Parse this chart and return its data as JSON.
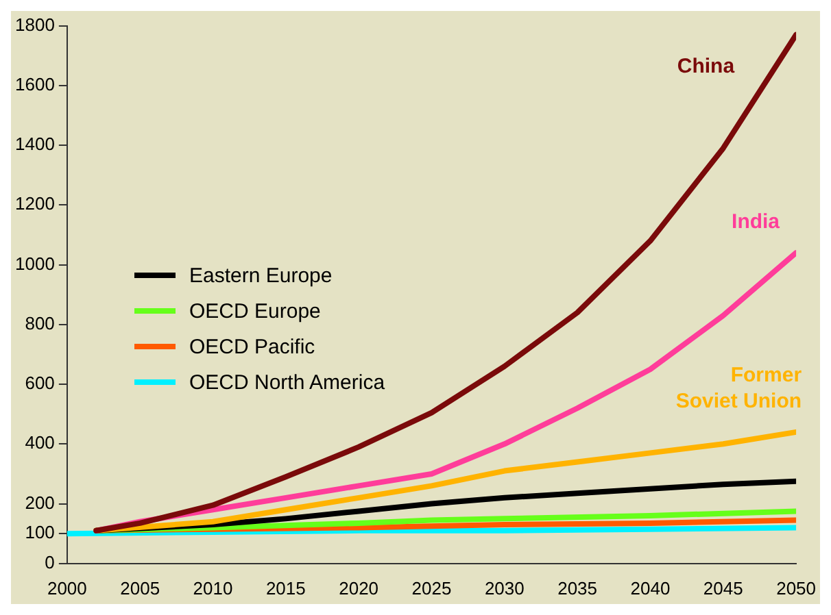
{
  "chart_data": {
    "type": "line",
    "xlim": [
      2000,
      2050
    ],
    "xticks": [
      2000,
      2005,
      2010,
      2015,
      2020,
      2025,
      2030,
      2035,
      2040,
      2045,
      2050
    ],
    "ylim": [
      0,
      1800
    ],
    "yticks": [
      0,
      100,
      200,
      400,
      600,
      800,
      1000,
      1200,
      1400,
      1600,
      1800
    ],
    "grid": false,
    "legend": "left",
    "marker": "none",
    "line_style": "solid",
    "series": [
      {
        "color": "#7a0a0a",
        "x": [
          2002,
          2005,
          2010,
          2015,
          2020,
          2025,
          2030,
          2035,
          2040,
          2045,
          2050
        ],
        "values": [
          110,
          135,
          195,
          290,
          390,
          505,
          660,
          840,
          1080,
          1390,
          1770
        ]
      },
      {
        "color": "#ff3d9a",
        "x": [
          2002,
          2005,
          2010,
          2015,
          2020,
          2025,
          2030,
          2035,
          2040,
          2045,
          2050
        ],
        "values": [
          110,
          140,
          180,
          220,
          260,
          300,
          400,
          520,
          650,
          830,
          1040
        ]
      },
      {
        "color": "#ffb300",
        "x": [
          2002,
          2010,
          2015,
          2020,
          2025,
          2030,
          2035,
          2040,
          2045,
          2050
        ],
        "values": [
          110,
          140,
          180,
          220,
          260,
          310,
          340,
          370,
          400,
          440
        ]
      },
      {
        "name": "Eastern Europe",
        "color": "#000000",
        "x": [
          2002,
          2010,
          2015,
          2020,
          2025,
          2030,
          2035,
          2040,
          2045,
          2050
        ],
        "values": [
          110,
          130,
          150,
          175,
          200,
          220,
          235,
          250,
          265,
          275
        ]
      },
      {
        "name": "OECD Europe",
        "color": "#66ff1a",
        "x": [
          2002,
          2010,
          2020,
          2025,
          2030,
          2040,
          2050
        ],
        "values": [
          110,
          120,
          135,
          145,
          150,
          160,
          175
        ]
      },
      {
        "name": "OECD Pacific",
        "color": "#ff5a00",
        "x": [
          2002,
          2010,
          2020,
          2025,
          2030,
          2040,
          2050
        ],
        "values": [
          110,
          115,
          120,
          125,
          130,
          135,
          145
        ]
      },
      {
        "name": "OECD North America",
        "color": "#00f0ff",
        "x": [
          2000,
          2010,
          2020,
          2030,
          2040,
          2050
        ],
        "values": [
          100,
          105,
          110,
          110,
          115,
          120
        ]
      }
    ],
    "annotations": [
      "China",
      "India",
      "Former\nSoviet Union"
    ]
  }
}
